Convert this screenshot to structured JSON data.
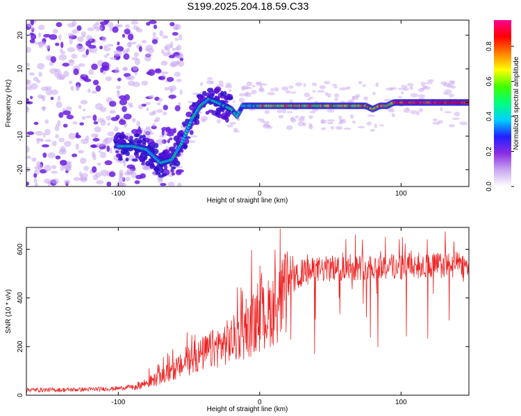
{
  "title": "S199.2025.204.18.59.C33",
  "chart_data": [
    {
      "type": "heatmap",
      "title": "S199.2025.204.18.59.C33",
      "xlabel": "Height of straight line (km)",
      "ylabel": "Frequency (Hz)",
      "xlim": [
        -165,
        148
      ],
      "ylim": [
        -25,
        24.5
      ],
      "x_ticks": [
        -100,
        0,
        100
      ],
      "y_ticks": [
        -20,
        -10,
        0,
        10,
        20
      ],
      "colorbar": {
        "label": "Normalized spectral amplitude",
        "range": [
          0,
          0.95
        ],
        "ticks": [
          0.0,
          0.2,
          0.4,
          0.6,
          0.8
        ],
        "colors": [
          "#ffffff",
          "#c9a7f0",
          "#8a2be2",
          "#2020ff",
          "#00d0ff",
          "#00ff80",
          "#40ff00",
          "#ffff00",
          "#ff8000",
          "#ff0000",
          "#ff0090"
        ]
      },
      "ridge": {
        "x": [
          -100,
          -90,
          -80,
          -70,
          -62,
          -55,
          -48,
          -42,
          -36,
          -30,
          -25,
          -20,
          -16,
          -12,
          -8,
          0,
          10,
          20,
          30,
          40,
          50,
          60,
          70,
          75,
          80,
          85,
          90,
          95,
          100,
          110,
          120,
          130,
          140,
          148
        ],
        "y": [
          -13,
          -13,
          -14,
          -18,
          -17,
          -12,
          -5,
          -1,
          1,
          0,
          -1,
          -2,
          -4,
          -1,
          -1,
          -1,
          -1,
          -1,
          -1,
          -1,
          -1,
          -1,
          -1,
          -1,
          -2,
          -1,
          -1,
          0,
          0,
          0,
          0,
          0,
          0,
          0
        ]
      }
    },
    {
      "type": "line",
      "xlabel": "Height of straight line (km)",
      "ylabel": "SNR (10 * v/v)",
      "xlim": [
        -165,
        148
      ],
      "ylim": [
        0,
        690
      ],
      "x_ticks": [
        -100,
        0,
        100
      ],
      "y_ticks": [
        0,
        200,
        400,
        600
      ],
      "series": [
        {
          "color": "#ee2222",
          "x": [
            -165,
            -140,
            -120,
            -100,
            -90,
            -80,
            -70,
            -60,
            -50,
            -40,
            -30,
            -20,
            -10,
            0,
            10,
            20,
            30,
            40,
            50,
            60,
            80,
            100,
            120,
            140,
            148
          ],
          "y": [
            22,
            22,
            24,
            28,
            35,
            55,
            80,
            115,
            150,
            185,
            215,
            245,
            280,
            330,
            390,
            460,
            510,
            520,
            525,
            530,
            535,
            535,
            540,
            540,
            540
          ]
        }
      ]
    }
  ]
}
